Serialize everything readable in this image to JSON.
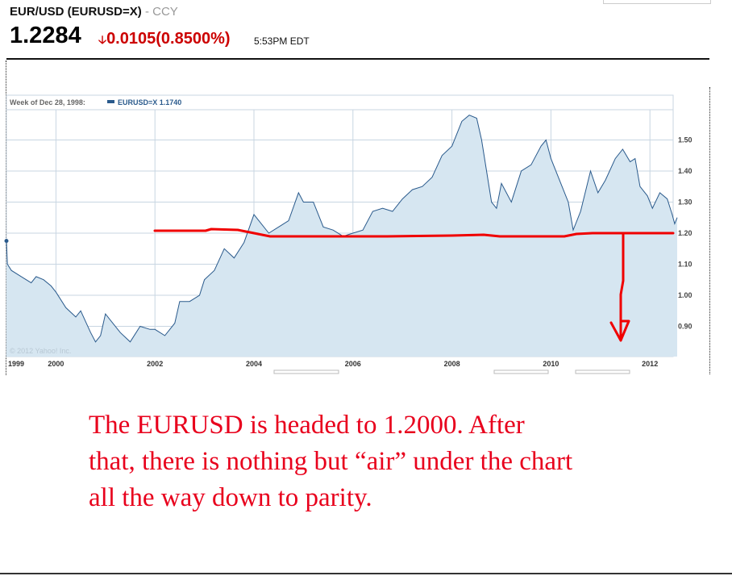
{
  "header": {
    "title": "EUR/USD (EURUSD=X)",
    "exchange": "- CCY",
    "price": "1.2284",
    "change": "0.0105",
    "change_pct": "(0.8500%)",
    "time": "5:53PM EDT",
    "down_arrow_icon": "arrow-down",
    "color_down": "#cc0000"
  },
  "chart_data": {
    "type": "area",
    "legend_label": "Week of Dec 28, 1998:",
    "series_label": "EURUSD=X 1.1740",
    "copyright": "© 2012 Yahoo! Inc.",
    "x_ticks": [
      "1999",
      "2000",
      "2002",
      "2004",
      "2006",
      "2008",
      "2010",
      "2012"
    ],
    "x_tick_values": [
      1999.05,
      2000,
      2002,
      2004,
      2006,
      2008,
      2010,
      2012
    ],
    "y_ticks": [
      "0.90",
      "1.00",
      "1.10",
      "1.20",
      "1.30",
      "1.40",
      "1.50"
    ],
    "y_tick_values": [
      0.9,
      1.0,
      1.1,
      1.2,
      1.3,
      1.4,
      1.5
    ],
    "ylim": [
      0.8,
      1.6
    ],
    "xlim": [
      1999,
      2012.5
    ],
    "line_color": "#2a5a8c",
    "fill_color": "#d6e6f1",
    "x": [
      1999.0,
      1999.02,
      1999.1,
      1999.3,
      1999.5,
      1999.6,
      1999.75,
      1999.9,
      2000.0,
      2000.2,
      2000.4,
      2000.5,
      2000.7,
      2000.8,
      2000.9,
      2001.0,
      2001.1,
      2001.3,
      2001.5,
      2001.7,
      2001.9,
      2002.0,
      2002.2,
      2002.4,
      2002.5,
      2002.7,
      2002.9,
      2003.0,
      2003.2,
      2003.4,
      2003.6,
      2003.8,
      2004.0,
      2004.1,
      2004.3,
      2004.5,
      2004.7,
      2004.9,
      2005.0,
      2005.2,
      2005.4,
      2005.6,
      2005.8,
      2006.0,
      2006.2,
      2006.4,
      2006.6,
      2006.8,
      2007.0,
      2007.2,
      2007.4,
      2007.6,
      2007.8,
      2008.0,
      2008.2,
      2008.35,
      2008.5,
      2008.6,
      2008.8,
      2008.9,
      2009.0,
      2009.2,
      2009.4,
      2009.6,
      2009.8,
      2009.9,
      2010.0,
      2010.2,
      2010.35,
      2010.45,
      2010.6,
      2010.8,
      2010.95,
      2011.1,
      2011.3,
      2011.45,
      2011.6,
      2011.7,
      2011.8,
      2011.95,
      2012.05,
      2012.2,
      2012.35,
      2012.45,
      2012.5,
      2012.55
    ],
    "values": [
      1.175,
      1.1,
      1.08,
      1.06,
      1.04,
      1.06,
      1.05,
      1.03,
      1.01,
      0.96,
      0.93,
      0.95,
      0.88,
      0.85,
      0.87,
      0.94,
      0.92,
      0.88,
      0.85,
      0.9,
      0.89,
      0.89,
      0.87,
      0.91,
      0.98,
      0.98,
      1.0,
      1.05,
      1.08,
      1.15,
      1.12,
      1.17,
      1.26,
      1.24,
      1.2,
      1.22,
      1.24,
      1.33,
      1.3,
      1.3,
      1.22,
      1.21,
      1.19,
      1.2,
      1.21,
      1.27,
      1.28,
      1.27,
      1.31,
      1.34,
      1.35,
      1.38,
      1.45,
      1.48,
      1.56,
      1.58,
      1.57,
      1.5,
      1.3,
      1.28,
      1.36,
      1.3,
      1.4,
      1.42,
      1.48,
      1.5,
      1.44,
      1.36,
      1.3,
      1.21,
      1.27,
      1.4,
      1.33,
      1.37,
      1.44,
      1.47,
      1.43,
      1.44,
      1.35,
      1.32,
      1.28,
      1.33,
      1.31,
      1.26,
      1.23,
      1.25
    ],
    "annotation": {
      "support_level": 1.2,
      "text_lines": [
        "The EURUSD is headed to 1.2000. After",
        "that, there is nothing but “air” under the chart",
        "all the way down to parity."
      ],
      "color": "#e8001c"
    }
  }
}
